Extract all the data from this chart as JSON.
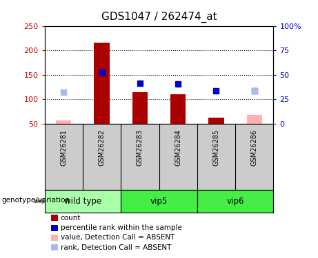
{
  "title": "GDS1047 / 262474_at",
  "samples": [
    "GSM26281",
    "GSM26282",
    "GSM26283",
    "GSM26284",
    "GSM26285",
    "GSM26286"
  ],
  "bar_values": [
    null,
    215,
    115,
    110,
    63,
    null
  ],
  "bar_absent_values": [
    57,
    null,
    null,
    null,
    null,
    68
  ],
  "rank_values": [
    null,
    155,
    133,
    131,
    117,
    117
  ],
  "rank_absent_values": [
    115,
    null,
    null,
    null,
    null,
    117
  ],
  "ylim_left": [
    50,
    250
  ],
  "ylim_right": [
    0,
    100
  ],
  "yticks_left": [
    50,
    100,
    150,
    200,
    250
  ],
  "yticks_right": [
    0,
    25,
    50,
    75,
    100
  ],
  "ytick_labels_left": [
    "50",
    "100",
    "150",
    "200",
    "250"
  ],
  "ytick_labels_right": [
    "0",
    "25",
    "50",
    "75",
    "100%"
  ],
  "bar_color": "#AA0000",
  "bar_absent_color": "#FFB0B0",
  "rank_color": "#0000CC",
  "rank_absent_color": "#AABBEE",
  "bg_color_main": "#FFFFFF",
  "bg_color_samples": "#CCCCCC",
  "group_defs": [
    {
      "name": "wild type",
      "start": 0,
      "end": 1,
      "color": "#AAFFAA"
    },
    {
      "name": "vip5",
      "start": 2,
      "end": 3,
      "color": "#44EE44"
    },
    {
      "name": "vip6",
      "start": 4,
      "end": 5,
      "color": "#44EE44"
    }
  ],
  "legend_items": [
    {
      "label": "count",
      "color": "#AA0000"
    },
    {
      "label": "percentile rank within the sample",
      "color": "#0000CC"
    },
    {
      "label": "value, Detection Call = ABSENT",
      "color": "#FFB0B0"
    },
    {
      "label": "rank, Detection Call = ABSENT",
      "color": "#AABBEE"
    }
  ],
  "genotype_label": "genotype/variation",
  "grid_dotted_values": [
    100,
    150,
    200
  ],
  "marker_size": 6,
  "bar_width": 0.4
}
